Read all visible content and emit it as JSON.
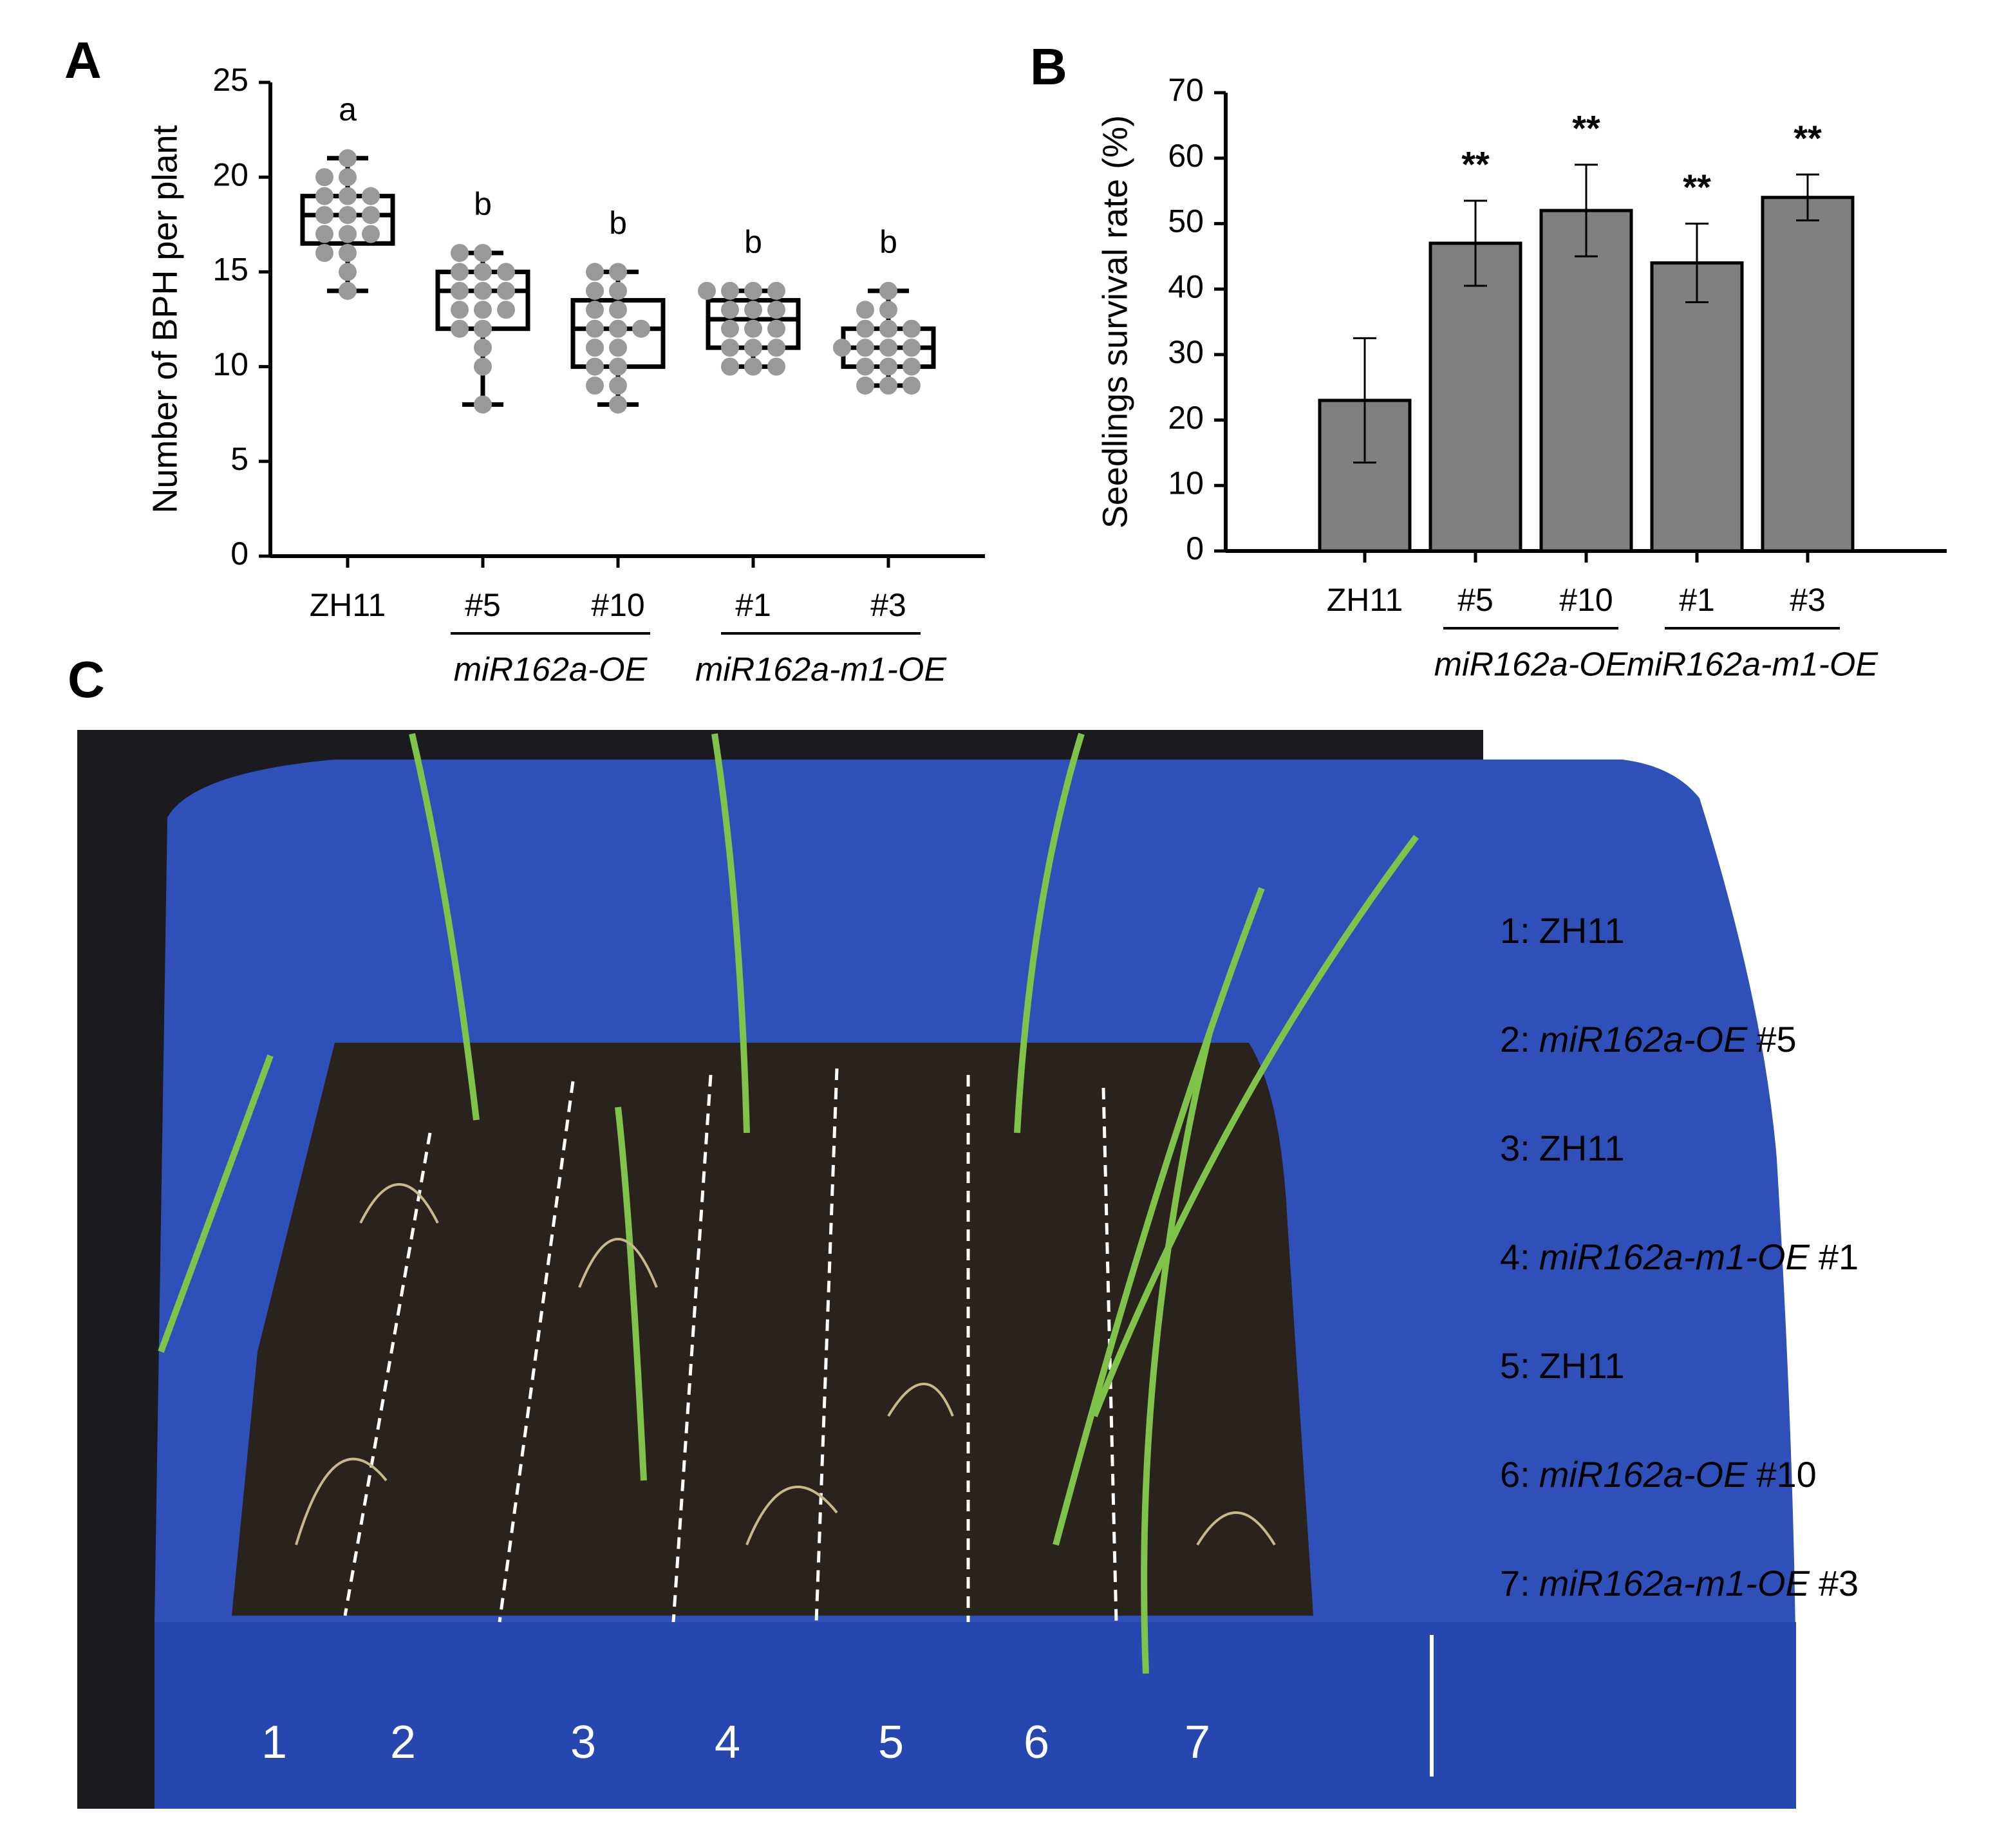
{
  "panels": [
    "A",
    "B",
    "C"
  ],
  "chart_data": [
    {
      "type": "box",
      "ylabel": "Number of BPH per plant",
      "categories": [
        "ZH11",
        "#5",
        "#10",
        "#1",
        "#3"
      ],
      "category_groups": [
        null,
        "miR162a-OE",
        "miR162a-OE",
        "miR162a-m1-OE",
        "miR162a-m1-OE"
      ],
      "boxes": [
        {
          "min": 14,
          "q1": 16.5,
          "median": 18,
          "q3": 19,
          "max": 21,
          "points": [
            14,
            15,
            16,
            16,
            17,
            17,
            17,
            18,
            18,
            18,
            19,
            19,
            19,
            20,
            20,
            21
          ]
        },
        {
          "min": 8,
          "q1": 12,
          "median": 14,
          "q3": 15,
          "max": 16,
          "points": [
            8,
            10,
            11,
            12,
            12,
            13,
            13,
            13,
            14,
            14,
            14,
            15,
            15,
            15,
            16,
            16
          ]
        },
        {
          "min": 8,
          "q1": 10,
          "median": 12,
          "q3": 13.5,
          "max": 15,
          "points": [
            8,
            9,
            9,
            10,
            10,
            11,
            11,
            12,
            12,
            12,
            13,
            13,
            14,
            14,
            15,
            15
          ]
        },
        {
          "min": 10,
          "q1": 11,
          "median": 12.5,
          "q3": 13.5,
          "max": 14,
          "points": [
            10,
            10,
            10,
            11,
            11,
            11,
            12,
            12,
            12,
            13,
            13,
            13,
            14,
            14,
            14,
            14
          ]
        },
        {
          "min": 9,
          "q1": 10,
          "median": 11,
          "q3": 12,
          "max": 14,
          "points": [
            9,
            9,
            9,
            10,
            10,
            10,
            11,
            11,
            11,
            11,
            12,
            12,
            12,
            13,
            13,
            14
          ]
        }
      ],
      "point_color": "#999999",
      "annotations": [
        "a",
        "b",
        "b",
        "b",
        "b"
      ],
      "ylim": [
        0,
        25
      ],
      "yticks": [
        0,
        5,
        10,
        15,
        20,
        25
      ]
    },
    {
      "type": "bar",
      "ylabel": "Seedlings survival rate (%)",
      "categories": [
        "ZH11",
        "#5",
        "#10",
        "#1",
        "#3"
      ],
      "category_groups": [
        null,
        "miR162a-OE",
        "miR162a-OE",
        "miR162a-m1-OE",
        "miR162a-m1-OE"
      ],
      "values": [
        23,
        47,
        52,
        44,
        54
      ],
      "errors": [
        9.5,
        6.5,
        7,
        6,
        3.5
      ],
      "color": "#808080",
      "annotations": [
        null,
        "**",
        "**",
        "**",
        "**"
      ],
      "ylim": [
        0,
        70
      ],
      "yticks": [
        0,
        10,
        20,
        30,
        40,
        50,
        60,
        70
      ]
    }
  ],
  "photo": {
    "lane_labels": [
      "1",
      "2",
      "3",
      "4",
      "5",
      "6",
      "7"
    ],
    "legend": [
      {
        "prefix": "1:",
        "name": "ZH11",
        "italic": false
      },
      {
        "prefix": "2:",
        "name": "miR162a-OE",
        "line": "#5",
        "italic": true
      },
      {
        "prefix": "3:",
        "name": "ZH11",
        "italic": false
      },
      {
        "prefix": "4:",
        "name": "miR162a-m1-OE",
        "line": "#1",
        "italic": true
      },
      {
        "prefix": "5:",
        "name": "ZH11",
        "italic": false
      },
      {
        "prefix": "6:",
        "name": "miR162a-OE",
        "line": "#10",
        "italic": true
      },
      {
        "prefix": "7:",
        "name": "miR162a-m1-OE",
        "line": "#3",
        "italic": true
      }
    ]
  }
}
